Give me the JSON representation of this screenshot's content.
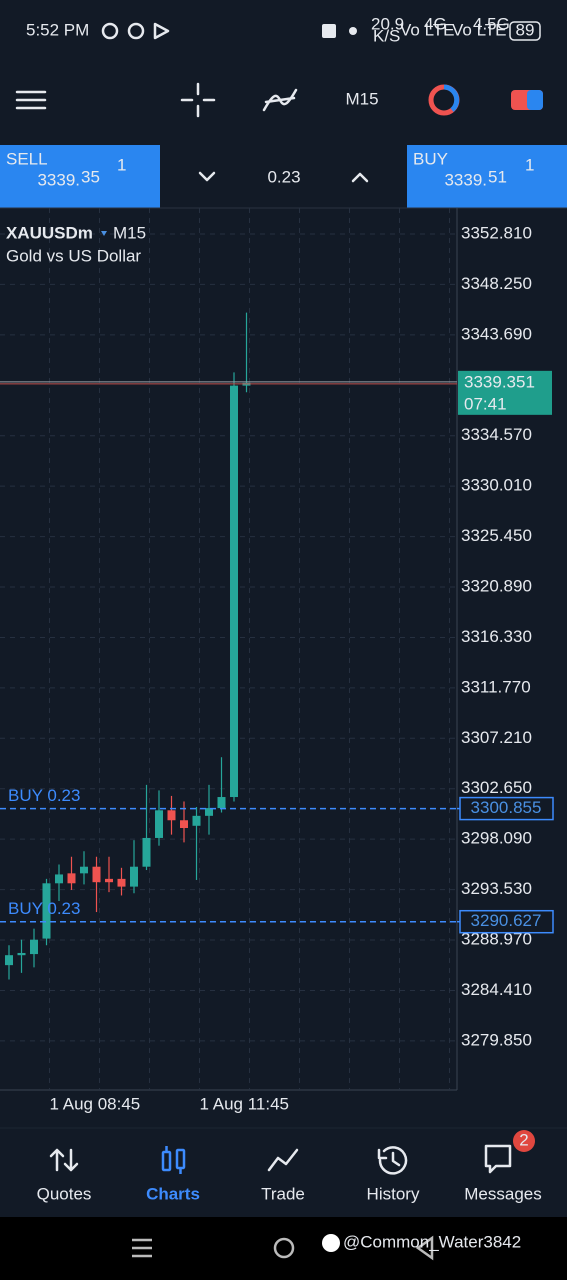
{
  "status_bar": {
    "time": "5:52 PM",
    "speed": "20.9",
    "speed_unit": "K/S",
    "sim1": "Vo LTE",
    "net1": "4G",
    "sim2": "Vo LTE",
    "net2": "4.5G",
    "battery": "89"
  },
  "toolbar": {
    "timeframe": "M15"
  },
  "trade_panel": {
    "sell": {
      "label": "SELL",
      "price_main": "3339.",
      "price_big": "35",
      "price_sup": "1"
    },
    "volume": "0.23",
    "buy": {
      "label": "BUY",
      "price_main": "3339.",
      "price_big": "51",
      "price_sup": "1"
    }
  },
  "chart_data": {
    "type": "candlestick",
    "title": "XAUUSDm",
    "timeframe": "M15",
    "subtitle": "Gold vs US Dollar",
    "up_color": "#26a69a",
    "down_color": "#ef5350",
    "grid": true,
    "categories": [
      null,
      null,
      null,
      "1 Aug 08:45",
      null,
      null,
      null,
      null,
      null,
      null,
      null,
      null,
      null,
      null,
      null,
      "1 Aug 11:45",
      null,
      null,
      null,
      null
    ],
    "open": [
      3286.7,
      3287.6,
      3287.7,
      3289.1,
      3294.1,
      3295.0,
      3295.0,
      3295.6,
      3294.5,
      3294.5,
      3293.8,
      3295.6,
      3298.2,
      3300.7,
      3299.8,
      3299.3,
      3300.2,
      3300.9,
      3301.9,
      3339.1
    ],
    "high": [
      3288.5,
      3289.0,
      3290.0,
      3294.5,
      3295.8,
      3296.5,
      3297.0,
      3296.5,
      3296.5,
      3295.5,
      3298.0,
      3303.0,
      3302.5,
      3302.0,
      3301.5,
      3301.0,
      3303.0,
      3305.5,
      3340.3,
      3345.7
    ],
    "low": [
      3285.4,
      3286.0,
      3286.5,
      3288.5,
      3292.5,
      3293.5,
      3294.0,
      3291.5,
      3293.3,
      3293.0,
      3293.2,
      3295.3,
      3297.5,
      3298.5,
      3297.8,
      3294.4,
      3298.5,
      3300.5,
      3301.5,
      3338.5
    ],
    "close": [
      3287.6,
      3287.8,
      3289.0,
      3294.1,
      3294.9,
      3294.1,
      3295.6,
      3294.2,
      3294.2,
      3293.8,
      3295.6,
      3298.2,
      3300.7,
      3299.8,
      3299.1,
      3300.2,
      3300.9,
      3301.9,
      3339.1,
      3339.35
    ],
    "ylim": [
      3275.41,
      3355.16
    ],
    "yticks": [
      {
        "value": 3352.81,
        "label": "3352.810"
      },
      {
        "value": 3348.25,
        "label": "3348.250"
      },
      {
        "value": 3343.69,
        "label": "3343.690"
      },
      {
        "value": 3334.57,
        "label": "3334.570"
      },
      {
        "value": 3330.01,
        "label": "3330.010"
      },
      {
        "value": 3325.45,
        "label": "3325.450"
      },
      {
        "value": 3320.89,
        "label": "3320.890"
      },
      {
        "value": 3316.33,
        "label": "3316.330"
      },
      {
        "value": 3311.77,
        "label": "3311.770"
      },
      {
        "value": 3307.21,
        "label": "3307.210"
      },
      {
        "value": 3302.65,
        "label": "3302.650"
      },
      {
        "value": 3298.09,
        "label": "3298.090"
      },
      {
        "value": 3293.53,
        "label": "3293.530"
      },
      {
        "value": 3288.97,
        "label": "3288.970"
      },
      {
        "value": 3284.41,
        "label": "3284.410"
      },
      {
        "value": 3279.85,
        "label": "3279.850"
      }
    ],
    "price_line": {
      "value": 3339.351,
      "countdown": "07:41"
    },
    "positions": [
      {
        "label": "BUY 0.23",
        "price": 3300.855
      },
      {
        "label": "BUY 0.23",
        "price": 3290.627
      }
    ]
  },
  "nav": [
    {
      "label": "Quotes"
    },
    {
      "label": "Charts"
    },
    {
      "label": "Trade"
    },
    {
      "label": "History"
    },
    {
      "label": "Messages",
      "badge": "2"
    }
  ],
  "watermark": "@Common_Water3842"
}
